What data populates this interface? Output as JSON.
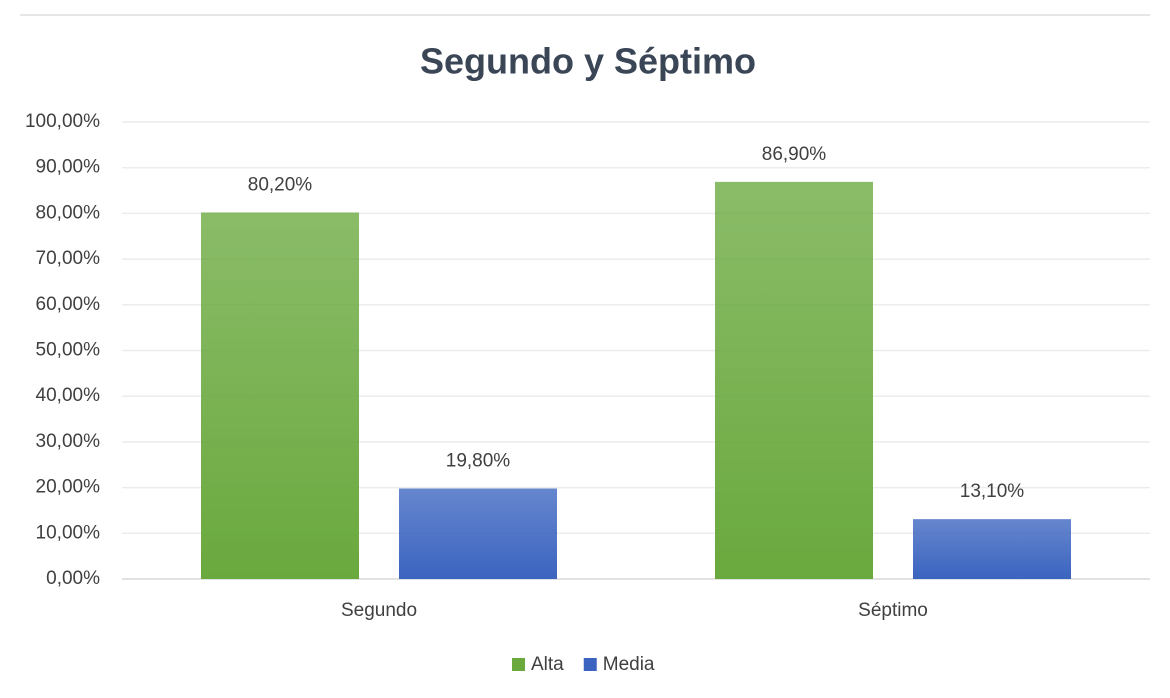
{
  "chart_data": {
    "type": "bar",
    "title": "Segundo y Séptimo",
    "categories": [
      "Segundo",
      "Séptimo"
    ],
    "series": [
      {
        "name": "Alta",
        "color": "#6aa93e",
        "values": [
          80.2,
          86.9
        ],
        "value_labels": [
          "80,20%",
          "86,90%"
        ]
      },
      {
        "name": "Media",
        "color": "#3b64c0",
        "values": [
          19.8,
          13.1
        ],
        "value_labels": [
          "19,80%",
          "13,10%"
        ]
      }
    ],
    "ylim": [
      0,
      100
    ],
    "yticks": [
      {
        "value": 0,
        "label": "0,00%"
      },
      {
        "value": 10,
        "label": "10,00%"
      },
      {
        "value": 20,
        "label": "20,00%"
      },
      {
        "value": 30,
        "label": "30,00%"
      },
      {
        "value": 40,
        "label": "40,00%"
      },
      {
        "value": 50,
        "label": "50,00%"
      },
      {
        "value": 60,
        "label": "60,00%"
      },
      {
        "value": 70,
        "label": "70,00%"
      },
      {
        "value": 80,
        "label": "80,00%"
      },
      {
        "value": 90,
        "label": "90,00%"
      },
      {
        "value": 100,
        "label": "100,00%"
      }
    ],
    "grid": true,
    "legend": "bottom"
  }
}
